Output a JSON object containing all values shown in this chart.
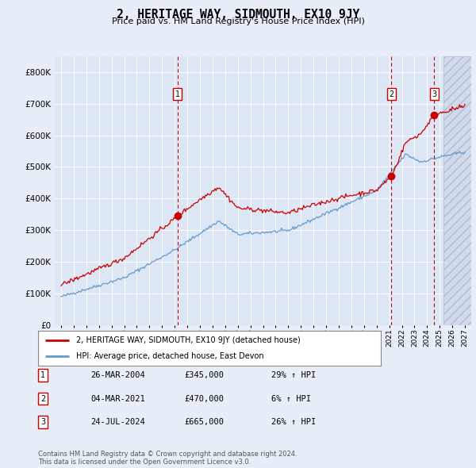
{
  "title": "2, HERITAGE WAY, SIDMOUTH, EX10 9JY",
  "subtitle": "Price paid vs. HM Land Registry's House Price Index (HPI)",
  "background_color": "#e8eef7",
  "plot_bg_color": "#dce6f5",
  "grid_color": "#ffffff",
  "ylim": [
    0,
    850000
  ],
  "yticks": [
    0,
    100000,
    200000,
    300000,
    400000,
    500000,
    600000,
    700000,
    800000
  ],
  "ytick_labels": [
    "£0",
    "£100K",
    "£200K",
    "£300K",
    "£400K",
    "£500K",
    "£600K",
    "£700K",
    "£800K"
  ],
  "year_start": 1995,
  "year_end": 2027,
  "xlim_left": 1994.5,
  "xlim_right": 2027.5,
  "hatch_start": 2025.3,
  "transactions": [
    {
      "num": 1,
      "date": "26-MAR-2004",
      "price": 345000,
      "year": 2004.23,
      "hpi_pct": "29%"
    },
    {
      "num": 2,
      "date": "04-MAR-2021",
      "price": 470000,
      "year": 2021.17,
      "hpi_pct": "6%"
    },
    {
      "num": 3,
      "date": "24-JUL-2024",
      "price": 665000,
      "year": 2024.56,
      "hpi_pct": "26%"
    }
  ],
  "legend_label_red": "2, HERITAGE WAY, SIDMOUTH, EX10 9JY (detached house)",
  "legend_label_blue": "HPI: Average price, detached house, East Devon",
  "footer_line1": "Contains HM Land Registry data © Crown copyright and database right 2024.",
  "footer_line2": "This data is licensed under the Open Government Licence v3.0.",
  "red_color": "#cc0000",
  "blue_color": "#6699cc",
  "marker_color": "#cc0000",
  "dashed_color": "#cc0000"
}
